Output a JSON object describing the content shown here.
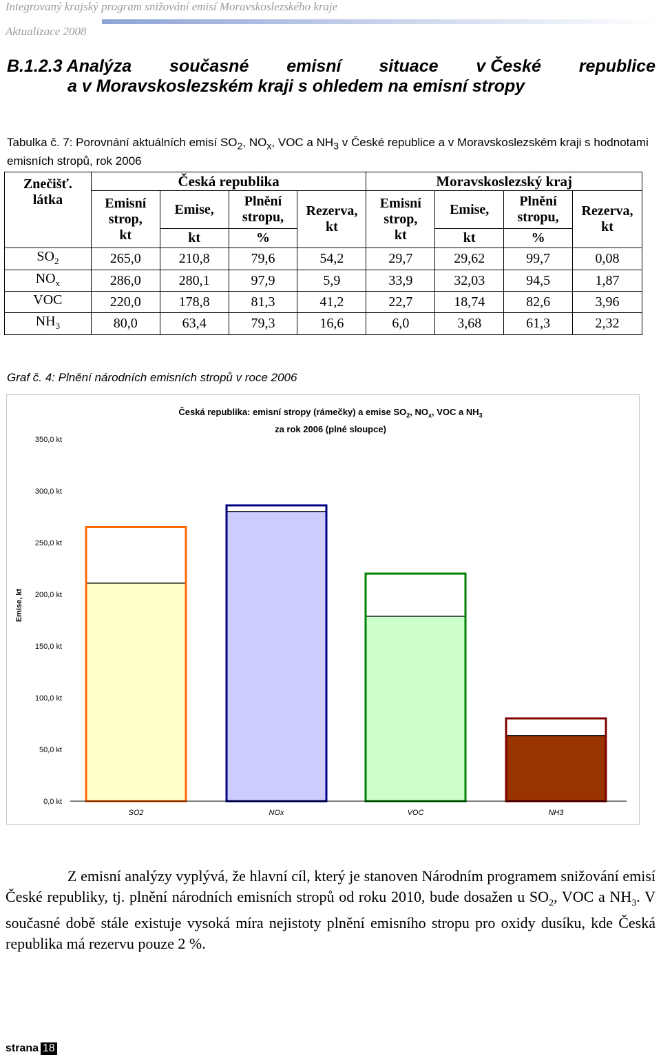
{
  "header": {
    "line1": "Integrovaný krajský program snižování emisí Moravskoslezského kraje",
    "line2": "Aktualizace 2008"
  },
  "section_title": {
    "number": "B.1.2.3",
    "w1": "Analýza",
    "w2": "současné",
    "w3": "emisní",
    "w4": "situace",
    "w5": "v České",
    "w6": "republice",
    "line2": "a v Moravskoslezském kraji s ohledem na emisní stropy"
  },
  "table_caption": {
    "t1": "Tabulka č. 7: Porovnání aktuálních emisí SO",
    "t2": ", NO",
    "t3": ", VOC a NH",
    "t4": " v České republice a v Moravskoslezském kraji s hodnotami emisních stropů, rok 2006",
    "sub2": "2",
    "subx": "x",
    "sub3": "3"
  },
  "table": {
    "pollutant_header_1": "Znečišť.",
    "pollutant_header_2": "látka",
    "group_cz": "Česká republika",
    "group_msk": "Moravskoslezský kraj",
    "col_cap_1": "Emisní",
    "col_cap_2": "strop,",
    "col_cap_3": "kt",
    "col_em": "Emise,",
    "col_ful_1": "Plnění",
    "col_ful_2": "stropu,",
    "col_res_1": "Rezerva,",
    "col_res_2": "kt",
    "unit_kt": "kt",
    "unit_pct": "%",
    "rows": [
      {
        "name": "SO",
        "sub": "2",
        "v": [
          "265,0",
          "210,8",
          "79,6",
          "54,2",
          "29,7",
          "29,62",
          "99,7",
          "0,08"
        ]
      },
      {
        "name": "NO",
        "sub": "x",
        "v": [
          "286,0",
          "280,1",
          "97,9",
          "5,9",
          "33,9",
          "32,03",
          "94,5",
          "1,87"
        ]
      },
      {
        "name": "VOC",
        "sub": "",
        "v": [
          "220,0",
          "178,8",
          "81,3",
          "41,2",
          "22,7",
          "18,74",
          "82,6",
          "3,96"
        ]
      },
      {
        "name": "NH",
        "sub": "3",
        "v": [
          "80,0",
          "63,4",
          "79,3",
          "16,6",
          "6,0",
          "3,68",
          "61,3",
          "2,32"
        ]
      }
    ]
  },
  "graph_caption": "Graf č. 4: Plnění národních emisních stropů v roce 2006",
  "chart_data": {
    "type": "bar",
    "title_a": "Česká republika: emisní stropy (rámečky) a emise  SO",
    "title_sub2": "2",
    "title_b": ", NO",
    "title_subx": "x",
    "title_c": ", VOC a NH",
    "title_sub3": "3",
    "title_line2": "za rok 2006 (plné sloupce)",
    "ylabel": "Emise, kt",
    "ylim": [
      0,
      350
    ],
    "yticks": [
      "0,0 kt",
      "50,0 kt",
      "100,0 kt",
      "150,0 kt",
      "200,0 kt",
      "250,0 kt",
      "300,0 kt",
      "350,0 kt"
    ],
    "categories": [
      "SO2",
      "NOx",
      "VOC",
      "NH3"
    ],
    "series": [
      {
        "values": [
          265.0,
          286.0,
          220.0,
          80.0
        ]
      },
      {
        "values": [
          210.8,
          280.1,
          178.8,
          63.4
        ]
      }
    ],
    "fill_colors": [
      "#ffffcc",
      "#ccccff",
      "#ccffcc",
      "#993300"
    ],
    "border_colors": [
      "#ff6600",
      "#000080",
      "#008000",
      "#800000"
    ]
  },
  "paragraph": {
    "p1": "Z emisní analýzy vyplývá, že hlavní cíl, který je stanoven Národním programem snižování emisí České republiky, tj. plnění národních emisních stropů od roku 2010, bude dosažen u SO",
    "s1": "2",
    "p2": ", VOC a NH",
    "s2": "3",
    "p3": ". V současné době stále existuje vysoká míra nejistoty plnění emisního stropu pro oxidy dusíku, kde Česká republika má rezervu pouze 2 %."
  },
  "footer": {
    "label": "strana",
    "number": "18"
  }
}
